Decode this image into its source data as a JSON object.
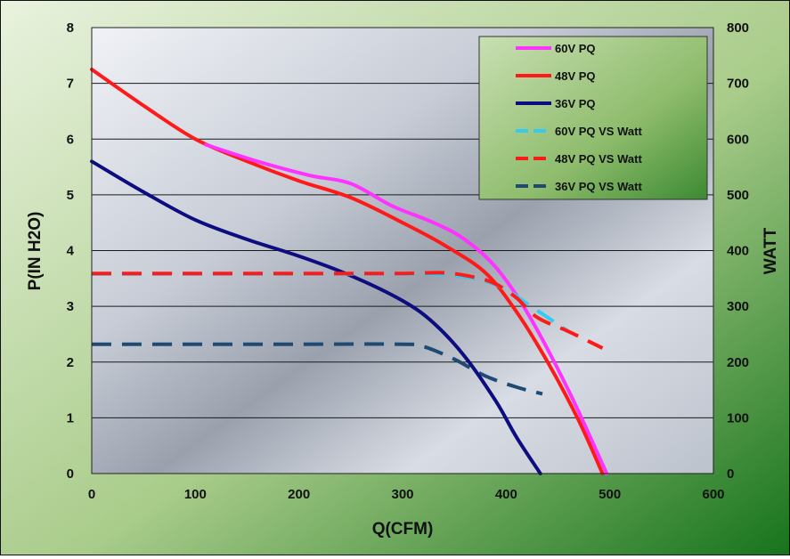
{
  "chart_data": {
    "type": "line",
    "title": "",
    "xlabel": "Q(CFM)",
    "ylabel_left": "P(IN H2O)",
    "ylabel_right": "WATT",
    "xlim": [
      0,
      600
    ],
    "ylim_left": [
      0,
      8
    ],
    "ylim_right": [
      0,
      800
    ],
    "x_ticks": [
      "0",
      "100",
      "200",
      "300",
      "400",
      "500",
      "600"
    ],
    "y_left_ticks": [
      "0",
      "1",
      "2",
      "3",
      "4",
      "5",
      "6",
      "7",
      "8"
    ],
    "y_right_ticks": [
      "0",
      "100",
      "200",
      "300",
      "400",
      "500",
      "600",
      "700",
      "800"
    ],
    "grid": "horizontal",
    "legend_position": "top-right",
    "series": [
      {
        "name": "60V PQ",
        "axis": "left",
        "color": "#ff33ff",
        "dash": false,
        "x": [
          110,
          160,
          210,
          250,
          290,
          330,
          360,
          390,
          420,
          460,
          497
        ],
        "y": [
          5.9,
          5.6,
          5.35,
          5.2,
          4.8,
          4.5,
          4.2,
          3.7,
          2.9,
          1.5,
          0
        ]
      },
      {
        "name": "48V PQ",
        "axis": "left",
        "color": "#ff1a1a",
        "dash": false,
        "x": [
          0,
          50,
          100,
          150,
          200,
          250,
          300,
          340,
          380,
          410,
          440,
          470,
          493
        ],
        "y": [
          7.25,
          6.6,
          6.0,
          5.6,
          5.25,
          4.95,
          4.5,
          4.1,
          3.6,
          2.9,
          2.0,
          0.95,
          0
        ]
      },
      {
        "name": "36V PQ",
        "axis": "left",
        "color": "#0d0d80",
        "dash": false,
        "x": [
          0,
          50,
          100,
          150,
          200,
          250,
          300,
          330,
          360,
          390,
          410,
          433
        ],
        "y": [
          5.6,
          5.05,
          4.55,
          4.2,
          3.9,
          3.55,
          3.1,
          2.7,
          2.1,
          1.3,
          0.65,
          0
        ]
      },
      {
        "name": "60V PQ VS Watt",
        "axis": "right",
        "color": "#33ccee",
        "dash": true,
        "x": [
          0,
          100,
          200,
          300,
          350,
          380,
          400,
          420,
          440,
          460
        ],
        "y": [
          358,
          358,
          358,
          358,
          355,
          345,
          330,
          305,
          280,
          255
        ]
      },
      {
        "name": "48V PQ VS Watt",
        "axis": "right",
        "color": "#ff1a1a",
        "dash": true,
        "x": [
          0,
          100,
          200,
          300,
          340,
          370,
          390,
          410,
          430,
          460,
          493
        ],
        "y": [
          359,
          359,
          359,
          359,
          360,
          352,
          340,
          315,
          280,
          255,
          225
        ]
      },
      {
        "name": "36V PQ VS Watt",
        "axis": "right",
        "color": "#1f4a73",
        "dash": true,
        "x": [
          0,
          100,
          200,
          300,
          320,
          350,
          380,
          410,
          435
        ],
        "y": [
          232,
          232,
          232,
          232,
          228,
          205,
          175,
          155,
          143
        ]
      }
    ]
  }
}
